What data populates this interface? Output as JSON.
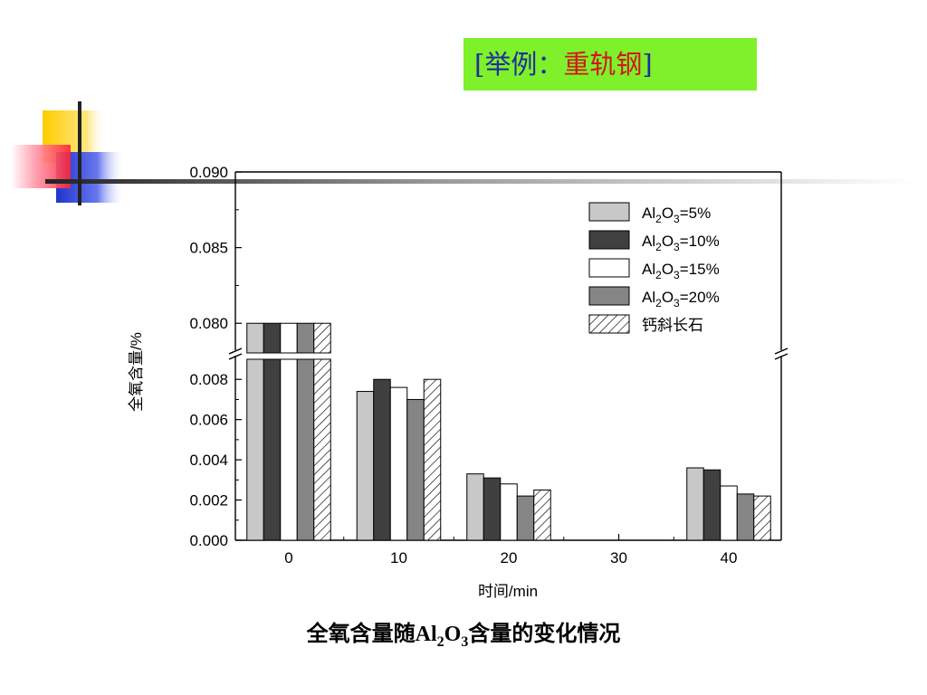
{
  "slide": {
    "title_prefix": "[举例：",
    "title_main": "重轨钢",
    "title_suffix": "]",
    "caption_a": "全氧含量随Al",
    "caption_sub1": "2",
    "caption_b": "O",
    "caption_sub2": "3",
    "caption_c": "含量的变化情况"
  },
  "chart_data": {
    "type": "bar",
    "xlabel": "时间/min",
    "ylabel": "全氧含量/%",
    "categories": [
      "0",
      "10",
      "20",
      "30",
      "40"
    ],
    "y_axis": {
      "broken": true,
      "lower_range": [
        0.0,
        0.009
      ],
      "upper_range": [
        0.0784,
        0.09
      ],
      "lower_ticks": [
        "0.000",
        "0.002",
        "0.004",
        "0.006",
        "0.008"
      ],
      "upper_ticks": [
        "0.080",
        "0.085",
        "0.090"
      ]
    },
    "series": [
      {
        "name": "Al2O3=5%",
        "label_parts": [
          "Al",
          "2",
          "O",
          "3",
          "=5%"
        ],
        "color": "#c8c8c8",
        "hatched": false,
        "values": [
          0.08,
          0.0074,
          0.0033,
          null,
          0.0036
        ]
      },
      {
        "name": "Al2O3=10%",
        "label_parts": [
          "Al",
          "2",
          "O",
          "3",
          "=10%"
        ],
        "color": "#404040",
        "hatched": false,
        "values": [
          0.08,
          0.008,
          0.0031,
          null,
          0.0035
        ]
      },
      {
        "name": "Al2O3=15%",
        "label_parts": [
          "Al",
          "2",
          "O",
          "3",
          "=15%"
        ],
        "color": "#ffffff",
        "hatched": false,
        "values": [
          0.08,
          0.0076,
          0.0028,
          null,
          0.0027
        ]
      },
      {
        "name": "Al2O3=20%",
        "label_parts": [
          "Al",
          "2",
          "O",
          "3",
          "=20%"
        ],
        "color": "#858585",
        "hatched": false,
        "values": [
          0.08,
          0.007,
          0.0022,
          null,
          0.0023
        ]
      },
      {
        "name": "钙斜长石",
        "label_parts": [
          "钙斜长石"
        ],
        "color": "#ffffff",
        "hatched": true,
        "values": [
          0.08,
          0.008,
          0.0025,
          null,
          0.0022
        ]
      }
    ],
    "legend": "top-right",
    "grid": false
  },
  "decor": {
    "yellow": "#ffcc00",
    "blue": "#2233cc",
    "red": "#ff3344"
  }
}
